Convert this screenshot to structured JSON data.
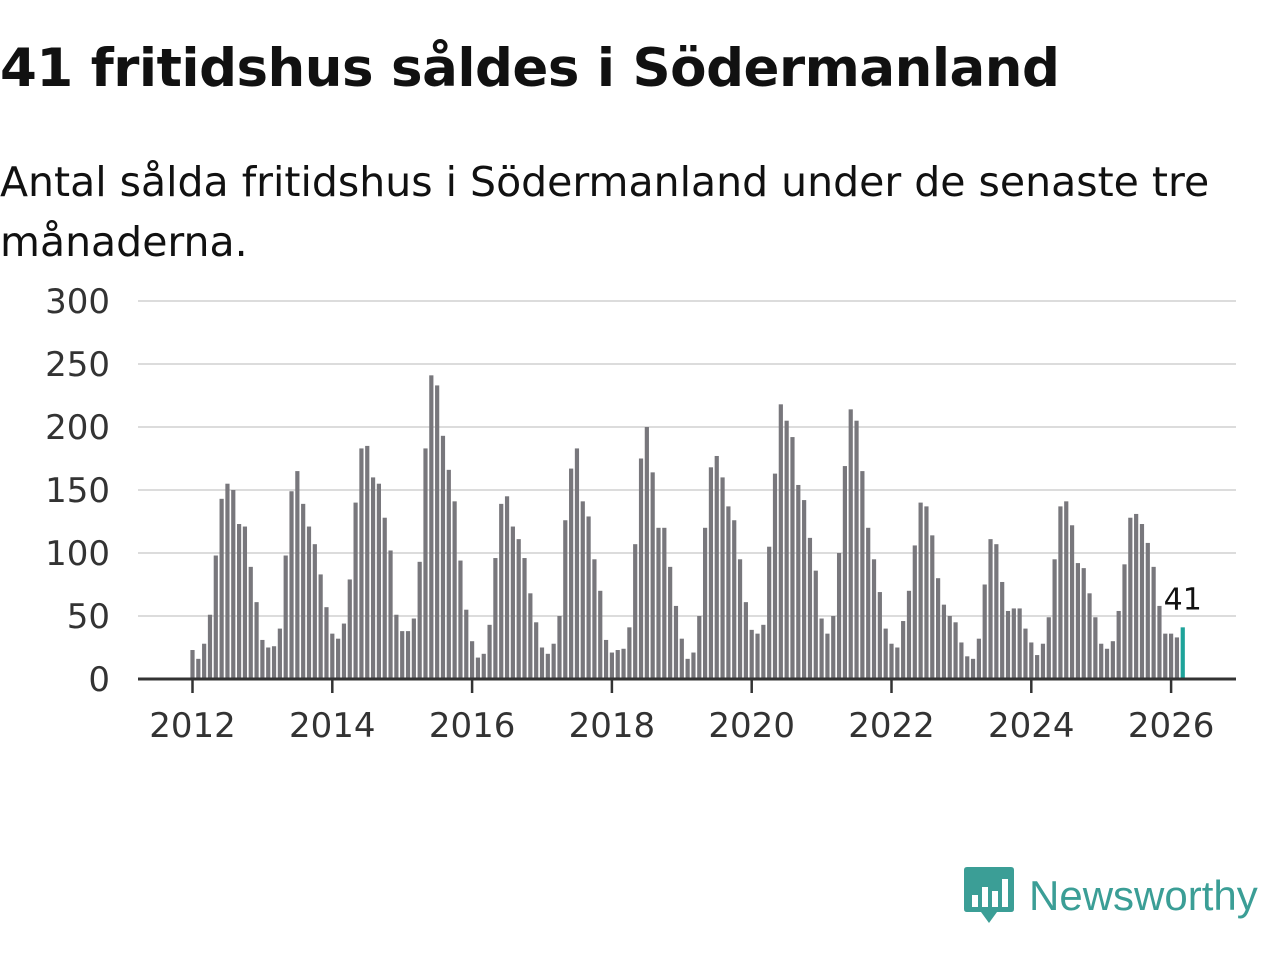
{
  "header": {
    "title": "41 fritidshus såldes i Södermanland",
    "subtitle": "Antal sålda fritidshus i Södermanland under de senaste tre månaderna."
  },
  "brand": {
    "name": "Newsworthy",
    "icon": "newsworthy-logo-icon",
    "color": "#3b9e96"
  },
  "colors": {
    "bar": "#78777c",
    "highlight": "#1ea39a",
    "grid": "#dcdcdc",
    "axis": "#333333"
  },
  "chart_data": {
    "type": "bar",
    "title": "41 fritidshus såldes i Södermanland",
    "subtitle": "Antal sålda fritidshus i Södermanland under de senaste tre månaderna.",
    "xlabel": "",
    "ylabel": "",
    "ylim": [
      0,
      300
    ],
    "yticks": [
      0,
      50,
      100,
      150,
      200,
      250,
      300
    ],
    "xticks": [
      "2012",
      "2014",
      "2016",
      "2018",
      "2020",
      "2022",
      "2024",
      "2026"
    ],
    "grid": true,
    "start": "2012-01",
    "period": "monthly",
    "highlight_label": "41",
    "values": [
      23,
      16,
      28,
      51,
      98,
      143,
      155,
      150,
      123,
      121,
      89,
      61,
      31,
      25,
      26,
      40,
      98,
      149,
      165,
      139,
      121,
      107,
      83,
      57,
      36,
      32,
      44,
      79,
      140,
      183,
      185,
      160,
      155,
      128,
      102,
      51,
      38,
      38,
      48,
      93,
      183,
      241,
      233,
      193,
      166,
      141,
      94,
      55,
      30,
      17,
      20,
      43,
      96,
      139,
      145,
      121,
      111,
      96,
      68,
      45,
      25,
      20,
      28,
      50,
      126,
      167,
      183,
      141,
      129,
      95,
      70,
      31,
      21,
      23,
      24,
      41,
      107,
      175,
      200,
      164,
      120,
      120,
      89,
      58,
      32,
      16,
      21,
      50,
      120,
      168,
      177,
      160,
      137,
      126,
      95,
      61,
      39,
      36,
      43,
      105,
      163,
      218,
      205,
      192,
      154,
      142,
      112,
      86,
      48,
      36,
      50,
      100,
      169,
      214,
      205,
      165,
      120,
      95,
      69,
      40,
      28,
      25,
      46,
      70,
      106,
      140,
      137,
      114,
      80,
      59,
      50,
      45,
      29,
      18,
      16,
      32,
      75,
      111,
      107,
      77,
      54,
      56,
      56,
      40,
      29,
      19,
      28,
      49,
      95,
      137,
      141,
      122,
      92,
      88,
      68,
      49,
      28,
      24,
      30,
      54,
      91,
      128,
      131,
      123,
      108,
      89,
      58,
      36,
      36,
      33,
      41
    ]
  }
}
